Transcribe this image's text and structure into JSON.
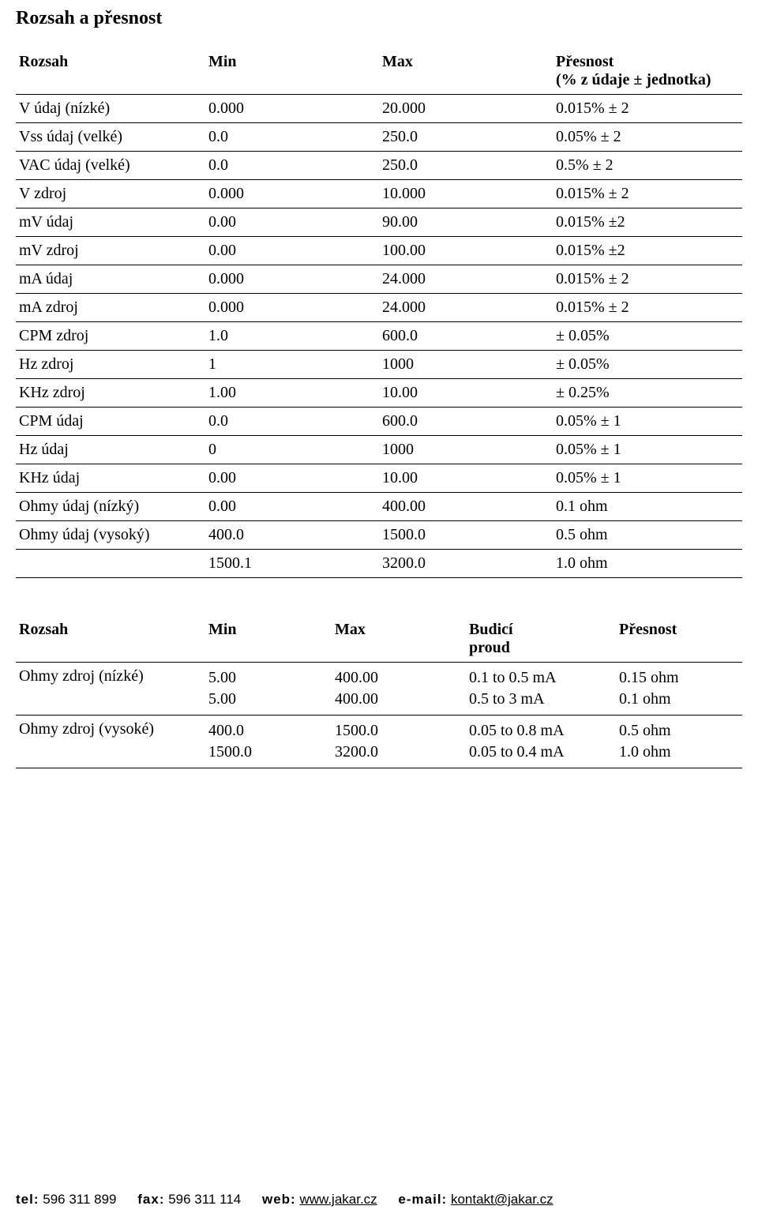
{
  "title": "Rozsah a přesnost",
  "table1": {
    "headers": {
      "col1": "Rozsah",
      "col2": "Min",
      "col3": "Max",
      "col4_line1": "Přesnost",
      "col4_line2": "(% z údaje ± jednotka)"
    },
    "rows": [
      {
        "c1": "V údaj (nízké)",
        "c2": "0.000",
        "c3": "20.000",
        "c4": "0.015% ± 2"
      },
      {
        "c1": "Vss údaj (velké)",
        "c2": "0.0",
        "c3": "250.0",
        "c4": "0.05% ± 2"
      },
      {
        "c1": "VAC údaj (velké)",
        "c2": "0.0",
        "c3": "250.0",
        "c4": "0.5% ± 2"
      },
      {
        "c1": "V zdroj",
        "c2": "0.000",
        "c3": "10.000",
        "c4": "0.015% ± 2"
      },
      {
        "c1": "mV údaj",
        "c2": "0.00",
        "c3": "90.00",
        "c4": "0.015% ±2"
      },
      {
        "c1": "mV zdroj",
        "c2": "0.00",
        "c3": "100.00",
        "c4": "0.015% ±2"
      },
      {
        "c1": "mA údaj",
        "c2": "0.000",
        "c3": "24.000",
        "c4": "0.015% ± 2"
      },
      {
        "c1": "mA zdroj",
        "c2": "0.000",
        "c3": "24.000",
        "c4": "0.015% ± 2"
      },
      {
        "c1": "CPM zdroj",
        "c2": "1.0",
        "c3": "600.0",
        "c4": "± 0.05%"
      },
      {
        "c1": "Hz zdroj",
        "c2": "1",
        "c3": "1000",
        "c4": "± 0.05%"
      },
      {
        "c1": "KHz zdroj",
        "c2": "1.00",
        "c3": "10.00",
        "c4": "± 0.25%"
      },
      {
        "c1": "CPM údaj",
        "c2": "0.0",
        "c3": "600.0",
        "c4": "0.05% ± 1"
      },
      {
        "c1": "Hz údaj",
        "c2": "0",
        "c3": "1000",
        "c4": "0.05% ± 1"
      },
      {
        "c1": "KHz údaj",
        "c2": "0.00",
        "c3": "10.00",
        "c4": "0.05% ± 1"
      },
      {
        "c1": "Ohmy údaj (nízký)",
        "c2": "0.00",
        "c3": "400.00",
        "c4": "0.1 ohm"
      },
      {
        "c1": "Ohmy údaj (vysoký)",
        "c2": "400.0",
        "c3": "1500.0",
        "c4": "0.5 ohm"
      },
      {
        "c1": "",
        "c2": "1500.1",
        "c3": "3200.0",
        "c4": "1.0 ohm"
      }
    ]
  },
  "table2": {
    "headers": {
      "col1": "Rozsah",
      "col2": "Min",
      "col3": "Max",
      "col4_line1": "Budicí",
      "col4_line2": "proud",
      "col5": "Přesnost"
    },
    "rows": [
      {
        "c1": "Ohmy zdroj (nízké)",
        "c2": [
          "5.00",
          "5.00"
        ],
        "c3": [
          "400.00",
          "400.00"
        ],
        "c4": [
          "0.1 to 0.5 mA",
          "0.5 to 3 mA"
        ],
        "c5": [
          "0.15 ohm",
          "0.1 ohm"
        ]
      },
      {
        "c1": "Ohmy zdroj (vysoké)",
        "c2": [
          "400.0",
          "1500.0"
        ],
        "c3": [
          "1500.0",
          "3200.0"
        ],
        "c4": [
          "0.05 to 0.8 mA",
          "0.05 to 0.4 mA"
        ],
        "c5": [
          "0.5 ohm",
          "1.0 ohm"
        ]
      }
    ]
  },
  "footer": {
    "tel_label": "tel:",
    "tel_value": "596 311 899",
    "fax_label": "fax:",
    "fax_value": "596 311 114",
    "web_label": "web:",
    "web_value": "www.jakar.cz",
    "email_label": "e-mail:",
    "email_value": "kontakt@jakar.cz"
  }
}
